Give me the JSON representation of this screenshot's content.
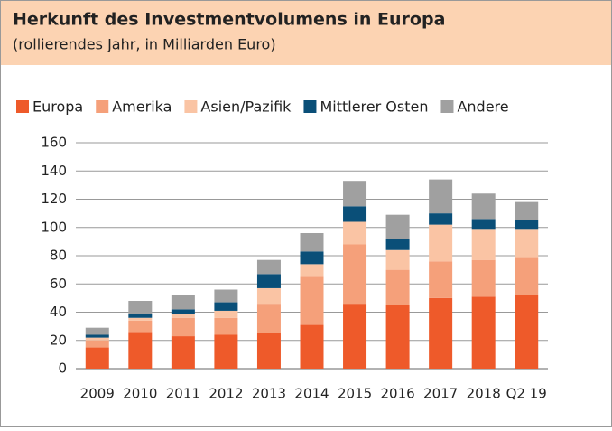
{
  "chart_data": {
    "type": "stacked-bar",
    "title": "Herkunft des Investmentvolumens in Europa",
    "subtitle": "(rollierendes Jahr, in Milliarden Euro)",
    "categories": [
      "2009",
      "2010",
      "2011",
      "2012",
      "2013",
      "2014",
      "2015",
      "2016",
      "2017",
      "2018",
      "Q2 19"
    ],
    "series": [
      {
        "name": "Europa",
        "color": "#ee5a2a",
        "values": [
          15,
          26,
          23,
          24,
          25,
          31,
          46,
          45,
          50,
          51,
          52
        ]
      },
      {
        "name": "Amerika",
        "color": "#f5a07a",
        "values": [
          5,
          8,
          13,
          12,
          21,
          34,
          42,
          25,
          26,
          26,
          27
        ]
      },
      {
        "name": "Asien/Pazifik",
        "color": "#fac4a4",
        "values": [
          2,
          2,
          3,
          5,
          11,
          9,
          16,
          14,
          26,
          22,
          20
        ]
      },
      {
        "name": "Mittlerer Osten",
        "color": "#0a4f78",
        "values": [
          2,
          3,
          3,
          6,
          10,
          9,
          11,
          8,
          8,
          7,
          6
        ]
      },
      {
        "name": "Andere",
        "color": "#a0a0a0",
        "values": [
          5,
          9,
          10,
          9,
          10,
          13,
          18,
          17,
          24,
          18,
          13
        ]
      }
    ],
    "ylim": [
      0,
      160
    ],
    "yticks": [
      0,
      20,
      40,
      60,
      80,
      100,
      120,
      140,
      160
    ],
    "grid": true
  }
}
